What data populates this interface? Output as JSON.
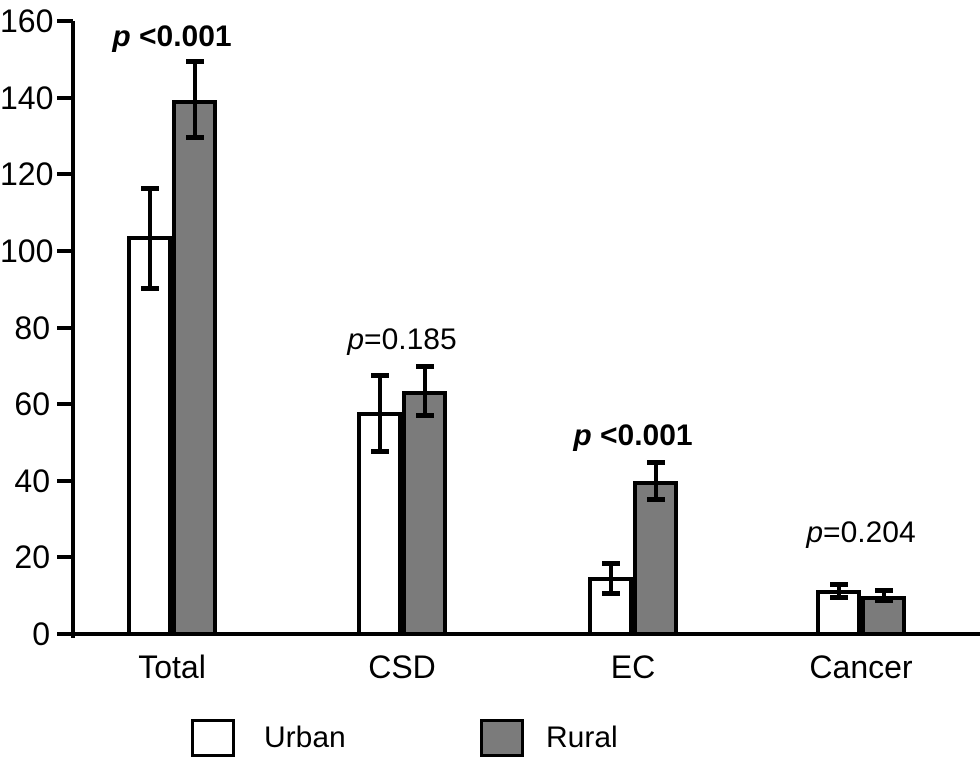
{
  "chart_data": {
    "type": "bar",
    "title": "",
    "xlabel": "",
    "ylabel": "",
    "categories": [
      "Total",
      "CSD",
      "EC",
      "Cancer"
    ],
    "series": [
      {
        "name": "Urban",
        "fill": "#ffffff",
        "values": [
          104,
          58,
          15,
          11.5
        ],
        "err_low": [
          90,
          47.5,
          10.5,
          9.5
        ],
        "err_high": [
          116.5,
          67.5,
          18.5,
          13
        ]
      },
      {
        "name": "Rural",
        "fill": "#7b7b7b",
        "values": [
          139.5,
          63.5,
          40,
          10
        ],
        "err_low": [
          129.5,
          57,
          35,
          8.5
        ],
        "err_high": [
          149.5,
          70,
          45,
          11.5
        ]
      }
    ],
    "annotations": [
      {
        "category": "Total",
        "text_italic": "p",
        "text_rest": " <0.001",
        "bold": true,
        "y": 153
      },
      {
        "category": "CSD",
        "text_italic": "p",
        "text_rest": "=0.185",
        "bold": false,
        "y": 74
      },
      {
        "category": "EC",
        "text_italic": "p",
        "text_rest": " <0.001",
        "bold": true,
        "y": 49
      },
      {
        "category": "Cancer",
        "text_italic": "p",
        "text_rest": "=0.204",
        "bold": false,
        "y": 23.5
      }
    ],
    "yticks": [
      0,
      20,
      40,
      60,
      80,
      100,
      120,
      140,
      160
    ],
    "ylim": [
      0,
      160
    ],
    "grid": false,
    "error_bars": true,
    "legend_position": "bottom"
  },
  "legend": {
    "items": [
      {
        "label": "Urban",
        "color": "#ffffff"
      },
      {
        "label": "Rural",
        "color": "#7b7b7b"
      }
    ]
  },
  "colors": {
    "axis": "#000000",
    "bar_outline": "#000000",
    "urban_fill": "#ffffff",
    "rural_fill": "#7b7b7b",
    "background": "#ffffff"
  }
}
